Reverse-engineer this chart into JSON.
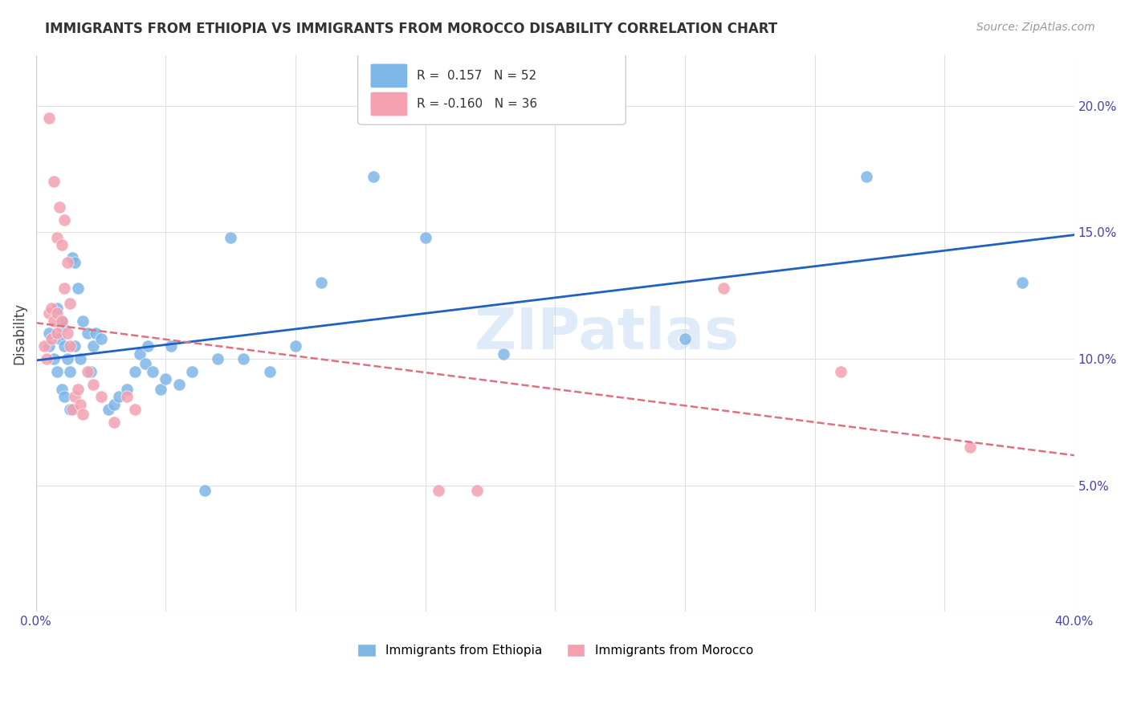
{
  "title": "IMMIGRANTS FROM ETHIOPIA VS IMMIGRANTS FROM MOROCCO DISABILITY CORRELATION CHART",
  "source": "Source: ZipAtlas.com",
  "ylabel": "Disability",
  "xlim": [
    0.0,
    0.4
  ],
  "ylim": [
    0.0,
    0.22
  ],
  "yticks": [
    0.05,
    0.1,
    0.15,
    0.2
  ],
  "ytick_labels": [
    "5.0%",
    "10.0%",
    "15.0%",
    "20.0%"
  ],
  "xticks": [
    0.0,
    0.05,
    0.1,
    0.15,
    0.2,
    0.25,
    0.3,
    0.35,
    0.4
  ],
  "xtick_labels": [
    "0.0%",
    "",
    "",
    "",
    "",
    "",
    "",
    "",
    "40.0%"
  ],
  "ethiopia_color": "#7EB6E8",
  "morocco_color": "#F4A0B0",
  "ethiopia_R": 0.157,
  "ethiopia_N": 52,
  "morocco_R": -0.16,
  "morocco_N": 36,
  "ethiopia_line_color": "#2060C0",
  "morocco_line_color": "#E07080",
  "watermark": "ZIPatlas",
  "ethiopia_x": [
    0.005,
    0.005,
    0.007,
    0.008,
    0.008,
    0.009,
    0.01,
    0.01,
    0.01,
    0.011,
    0.011,
    0.012,
    0.013,
    0.013,
    0.014,
    0.015,
    0.015,
    0.016,
    0.017,
    0.018,
    0.02,
    0.021,
    0.022,
    0.023,
    0.025,
    0.028,
    0.03,
    0.032,
    0.035,
    0.038,
    0.04,
    0.042,
    0.043,
    0.045,
    0.048,
    0.05,
    0.052,
    0.055,
    0.06,
    0.065,
    0.07,
    0.075,
    0.08,
    0.09,
    0.1,
    0.11,
    0.13,
    0.15,
    0.18,
    0.25,
    0.32,
    0.38
  ],
  "ethiopia_y": [
    0.11,
    0.105,
    0.1,
    0.12,
    0.095,
    0.108,
    0.113,
    0.115,
    0.088,
    0.105,
    0.085,
    0.1,
    0.095,
    0.08,
    0.14,
    0.138,
    0.105,
    0.128,
    0.1,
    0.115,
    0.11,
    0.095,
    0.105,
    0.11,
    0.108,
    0.08,
    0.082,
    0.085,
    0.088,
    0.095,
    0.102,
    0.098,
    0.105,
    0.095,
    0.088,
    0.092,
    0.105,
    0.09,
    0.095,
    0.048,
    0.1,
    0.148,
    0.1,
    0.095,
    0.105,
    0.13,
    0.172,
    0.148,
    0.102,
    0.108,
    0.172,
    0.13
  ],
  "morocco_x": [
    0.003,
    0.004,
    0.005,
    0.005,
    0.006,
    0.006,
    0.007,
    0.007,
    0.008,
    0.008,
    0.008,
    0.009,
    0.01,
    0.01,
    0.011,
    0.011,
    0.012,
    0.012,
    0.013,
    0.013,
    0.014,
    0.015,
    0.016,
    0.017,
    0.018,
    0.02,
    0.022,
    0.025,
    0.03,
    0.035,
    0.038,
    0.155,
    0.17,
    0.265,
    0.31,
    0.36
  ],
  "morocco_y": [
    0.105,
    0.1,
    0.195,
    0.118,
    0.12,
    0.108,
    0.115,
    0.17,
    0.118,
    0.148,
    0.11,
    0.16,
    0.115,
    0.145,
    0.155,
    0.128,
    0.11,
    0.138,
    0.105,
    0.122,
    0.08,
    0.085,
    0.088,
    0.082,
    0.078,
    0.095,
    0.09,
    0.085,
    0.075,
    0.085,
    0.08,
    0.048,
    0.048,
    0.128,
    0.095,
    0.065
  ],
  "background_color": "#FFFFFF",
  "grid_color": "#E0E0E0"
}
